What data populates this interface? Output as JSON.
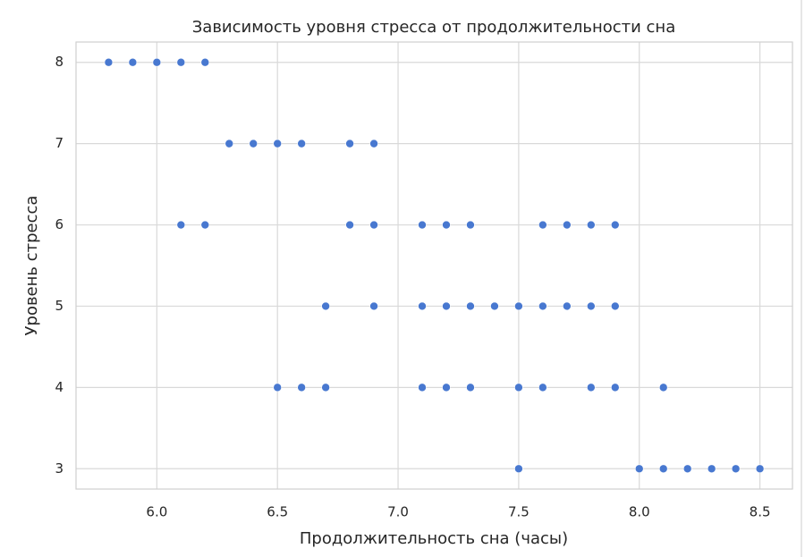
{
  "chart_data": {
    "type": "scatter",
    "title": "Зависимость уровня стресса от продолжительности сна",
    "x_label": "Продолжительность сна (часы)",
    "y_label": "Уровень стресса",
    "color": "#4878d0",
    "x": [
      5.8,
      5.9,
      6.0,
      6.1,
      6.2,
      6.3,
      6.4,
      6.5,
      6.6,
      6.8,
      6.9,
      6.1,
      6.2,
      6.8,
      6.9,
      7.1,
      7.2,
      7.3,
      7.6,
      7.7,
      7.8,
      7.9,
      6.7,
      6.9,
      7.1,
      7.2,
      7.3,
      7.4,
      7.5,
      7.6,
      7.7,
      7.8,
      7.9,
      6.5,
      6.6,
      6.7,
      7.1,
      7.2,
      7.3,
      7.5,
      7.6,
      7.8,
      7.9,
      8.1,
      7.5,
      8.0,
      8.1,
      8.2,
      8.3,
      8.4,
      8.5
    ],
    "values": [
      8,
      8,
      8,
      8,
      8,
      7,
      7,
      7,
      7,
      7,
      7,
      6,
      6,
      6,
      6,
      6,
      6,
      6,
      6,
      6,
      6,
      6,
      5,
      5,
      5,
      5,
      5,
      5,
      5,
      5,
      5,
      5,
      5,
      4,
      4,
      4,
      4,
      4,
      4,
      4,
      4,
      4,
      4,
      4,
      3,
      3,
      3,
      3,
      3,
      3,
      3
    ],
    "xlim": [
      5.665,
      8.635
    ],
    "ylim": [
      2.75,
      8.25
    ],
    "xticks": [
      {
        "value": 6,
        "label": "6.0"
      },
      {
        "value": 6.5,
        "label": "6.5"
      },
      {
        "value": 7,
        "label": "7.0"
      },
      {
        "value": 7.5,
        "label": "7.5"
      },
      {
        "value": 8,
        "label": "8.0"
      },
      {
        "value": 8.5,
        "label": "8.5"
      }
    ],
    "yticks": [
      3,
      4,
      5,
      6,
      7,
      8
    ],
    "grid": true
  }
}
